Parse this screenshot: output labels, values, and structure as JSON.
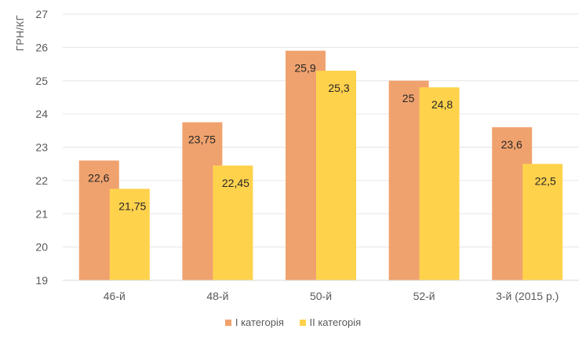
{
  "chart_data": {
    "type": "bar",
    "title": "",
    "xlabel": "",
    "ylabel": "ГРН/КГ",
    "ylim": [
      19,
      27
    ],
    "yticks": [
      "19",
      "20",
      "21",
      "22",
      "23",
      "24",
      "25",
      "26",
      "27"
    ],
    "grid": true,
    "legend_position": "bottom",
    "categories": [
      "46-й",
      "48-й",
      "50-й",
      "52-й",
      "3-й (2015 р.)"
    ],
    "series": [
      {
        "name": "І категорія",
        "color": "#F0A26E",
        "values": [
          22.6,
          23.75,
          25.9,
          25,
          23.6
        ],
        "labels": [
          "22,6",
          "23,75",
          "25,9",
          "25",
          "23,6"
        ]
      },
      {
        "name": "ІІ категорія",
        "color": "#FFD24C",
        "values": [
          21.75,
          22.45,
          25.3,
          24.8,
          22.5
        ],
        "labels": [
          "21,75",
          "22,45",
          "25,3",
          "24,8",
          "22,5"
        ]
      }
    ]
  }
}
